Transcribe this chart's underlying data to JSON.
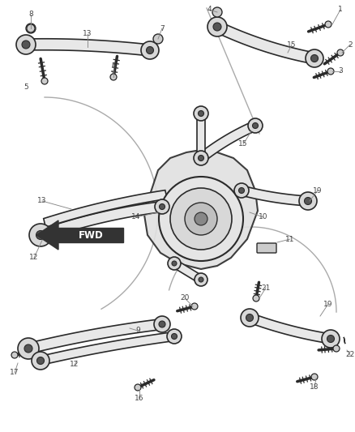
{
  "bg_color": "#ffffff",
  "lc": "#2a2a2a",
  "lc_light": "#888888",
  "lc_label": "#444444",
  "label_fs": 6.5,
  "fig_w": 4.38,
  "fig_h": 5.33,
  "dpi": 100
}
